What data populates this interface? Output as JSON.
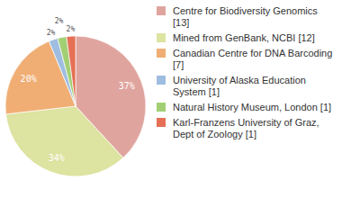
{
  "chart_data": {
    "type": "pie",
    "categories": [
      "Centre for Biodiversity Genomics [13]",
      "Mined from GenBank, NCBI [12]",
      "Canadian Centre for DNA Barcoding [7]",
      "University of Alaska Education System [1]",
      "Natural History Museum, London [1]",
      "Karl-Franzens University of Graz, Dept of Zoology [1]"
    ],
    "values": [
      37,
      34,
      20,
      2,
      2,
      2
    ],
    "value_labels": [
      "37%",
      "34%",
      "20%",
      "2%",
      "2%",
      "2%"
    ],
    "colors": [
      "#e0a49e",
      "#dde3a0",
      "#f0ae74",
      "#9ebde0",
      "#a3cf74",
      "#e57055"
    ],
    "data_labels": true,
    "legend": "right"
  }
}
